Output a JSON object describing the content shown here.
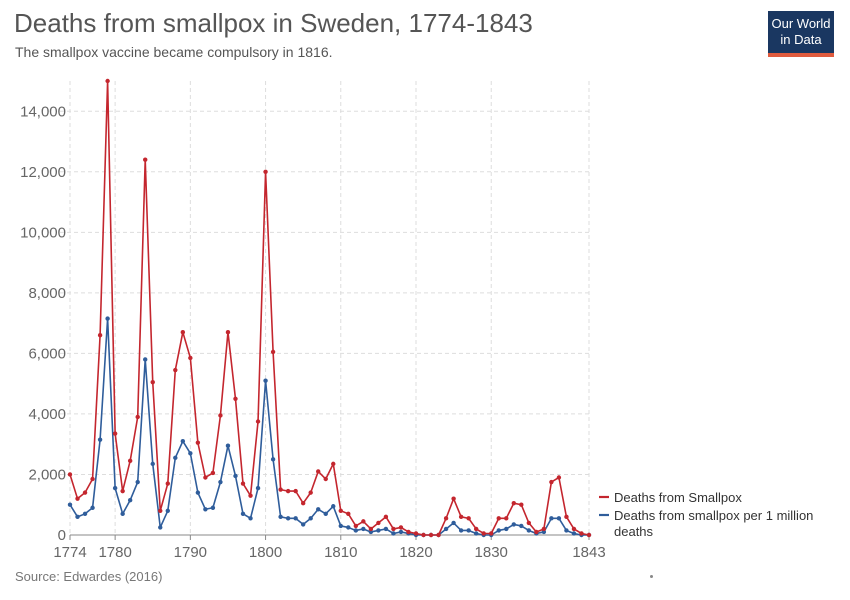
{
  "header": {
    "title": "Deaths from smallpox in Sweden, 1774-1843",
    "subtitle": "The smallpox vaccine became compulsory in 1816."
  },
  "logo": {
    "line1": "Our World",
    "line2": "in Data"
  },
  "footer": {
    "source": "Source: Edwardes (2016)"
  },
  "colors": {
    "deaths": "#c4262e",
    "per_million": "#2f5d9b",
    "grid": "#dddddd",
    "axis": "#888888",
    "logo_bg": "#1a3761",
    "logo_bar": "#e05b3e"
  },
  "chart_data": {
    "type": "line",
    "title": "Deaths from smallpox in Sweden, 1774-1843",
    "subtitle": "The smallpox vaccine became compulsory in 1816.",
    "xlim": [
      1774,
      1843
    ],
    "ylim": [
      0,
      15000
    ],
    "x_ticks": [
      1774,
      1780,
      1790,
      1800,
      1810,
      1820,
      1830,
      1843
    ],
    "y_ticks": [
      0,
      2000,
      4000,
      6000,
      8000,
      10000,
      12000,
      14000
    ],
    "y_tick_labels": [
      "0",
      "2,000",
      "4,000",
      "6,000",
      "8,000",
      "10,000",
      "12,000",
      "14,000"
    ],
    "grid": true,
    "legend_position": "right",
    "x": [
      1774,
      1775,
      1776,
      1777,
      1778,
      1779,
      1780,
      1781,
      1782,
      1783,
      1784,
      1785,
      1786,
      1787,
      1788,
      1789,
      1790,
      1791,
      1792,
      1793,
      1794,
      1795,
      1796,
      1797,
      1798,
      1799,
      1800,
      1801,
      1802,
      1803,
      1804,
      1805,
      1806,
      1807,
      1808,
      1809,
      1810,
      1811,
      1812,
      1813,
      1814,
      1815,
      1816,
      1817,
      1818,
      1819,
      1820,
      1821,
      1822,
      1823,
      1824,
      1825,
      1826,
      1827,
      1828,
      1829,
      1830,
      1831,
      1832,
      1833,
      1834,
      1835,
      1836,
      1837,
      1838,
      1839,
      1840,
      1841,
      1842,
      1843
    ],
    "series": [
      {
        "name": "Deaths from Smallpox",
        "color": "#c4262e",
        "values": [
          2000,
          1200,
          1400,
          1850,
          6600,
          15000,
          3350,
          1450,
          2450,
          3900,
          12400,
          5050,
          800,
          1700,
          5450,
          6700,
          5850,
          3050,
          1900,
          2050,
          3950,
          6700,
          4500,
          1700,
          1300,
          3750,
          12000,
          6050,
          1500,
          1450,
          1450,
          1050,
          1400,
          2100,
          1850,
          2350,
          800,
          700,
          300,
          450,
          200,
          400,
          600,
          200,
          250,
          100,
          50,
          0,
          0,
          0,
          550,
          1200,
          600,
          550,
          200,
          50,
          50,
          550,
          550,
          1050,
          1000,
          400,
          100,
          200,
          1750,
          1900,
          600,
          200,
          50,
          0
        ]
      },
      {
        "name": "Deaths from smallpox per 1 million deaths",
        "color": "#2f5d9b",
        "values": [
          1000,
          600,
          700,
          900,
          3150,
          7150,
          1550,
          700,
          1150,
          1750,
          5800,
          2350,
          250,
          800,
          2550,
          3100,
          2700,
          1400,
          850,
          900,
          1750,
          2950,
          1950,
          700,
          550,
          1550,
          5100,
          2500,
          600,
          550,
          550,
          350,
          550,
          850,
          700,
          950,
          300,
          250,
          150,
          200,
          100,
          150,
          200,
          50,
          100,
          50,
          0,
          0,
          0,
          0,
          200,
          400,
          150,
          150,
          50,
          0,
          0,
          150,
          200,
          350,
          300,
          150,
          50,
          100,
          550,
          550,
          150,
          50,
          0,
          0
        ]
      }
    ]
  }
}
